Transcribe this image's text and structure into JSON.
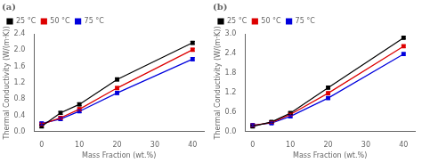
{
  "chart_data": [
    {
      "type": "line",
      "title": "(a)",
      "xlabel": "Mass Fraction (wt.%)",
      "ylabel": "Thermal Conductivity (W/(m·K))",
      "x": [
        0,
        5,
        10,
        20,
        40
      ],
      "series": [
        {
          "name": "25 °C",
          "color": "#000000",
          "values": [
            0.13,
            0.46,
            0.67,
            1.28,
            2.18
          ],
          "errors": [
            0.035,
            0.035,
            0.035,
            0.035,
            0.035
          ]
        },
        {
          "name": "50 °C",
          "color": "#dd0000",
          "values": [
            0.18,
            0.34,
            0.55,
            1.07,
            2.01
          ],
          "errors": [
            0.035,
            0.035,
            0.035,
            0.035,
            0.035
          ]
        },
        {
          "name": "75 °C",
          "color": "#0000dd",
          "values": [
            0.2,
            0.31,
            0.5,
            0.95,
            1.78
          ],
          "errors": [
            0.035,
            0.035,
            0.035,
            0.035,
            0.035
          ]
        }
      ],
      "xlim": [
        -2,
        43
      ],
      "xticks": [
        0,
        10,
        20,
        30,
        40
      ],
      "ylim": [
        0,
        2.4
      ],
      "yticks": [
        {
          "value": 0,
          "label": "0.0"
        },
        0.4,
        0.8,
        1.2,
        1.6,
        {
          "value": 2,
          "label": "2.0"
        },
        2.4
      ],
      "marker": "square",
      "line_style": "solid",
      "legend": "upper left",
      "grid": false
    },
    {
      "type": "line",
      "title": "(b)",
      "xlabel": "Mass Fraction (wt.%)",
      "ylabel": "Thermal Conductivity (W/(m·K))",
      "x": [
        0,
        5,
        10,
        20,
        40
      ],
      "series": [
        {
          "name": "25 °C",
          "color": "#000000",
          "values": [
            0.16,
            0.3,
            0.57,
            1.35,
            2.88
          ],
          "errors": [
            0.035,
            0.035,
            0.035,
            0.035,
            0.035
          ]
        },
        {
          "name": "50 °C",
          "color": "#dd0000",
          "values": [
            0.19,
            0.28,
            0.53,
            1.18,
            2.62
          ],
          "errors": [
            0.035,
            0.035,
            0.035,
            0.035,
            0.035
          ]
        },
        {
          "name": "75 °C",
          "color": "#0000dd",
          "values": [
            0.2,
            0.26,
            0.47,
            1.03,
            2.38
          ],
          "errors": [
            0.035,
            0.035,
            0.035,
            0.035,
            0.035
          ]
        }
      ],
      "xlim": [
        -2,
        43
      ],
      "xticks": [
        0,
        10,
        20,
        30,
        40
      ],
      "ylim": [
        0,
        3.0
      ],
      "yticks": [
        {
          "value": 0,
          "label": "0.0"
        },
        0.6,
        1.2,
        1.8,
        2.4,
        {
          "value": 3,
          "label": "3.0"
        }
      ],
      "marker": "square",
      "line_style": "solid",
      "legend": "upper left",
      "grid": false
    }
  ]
}
